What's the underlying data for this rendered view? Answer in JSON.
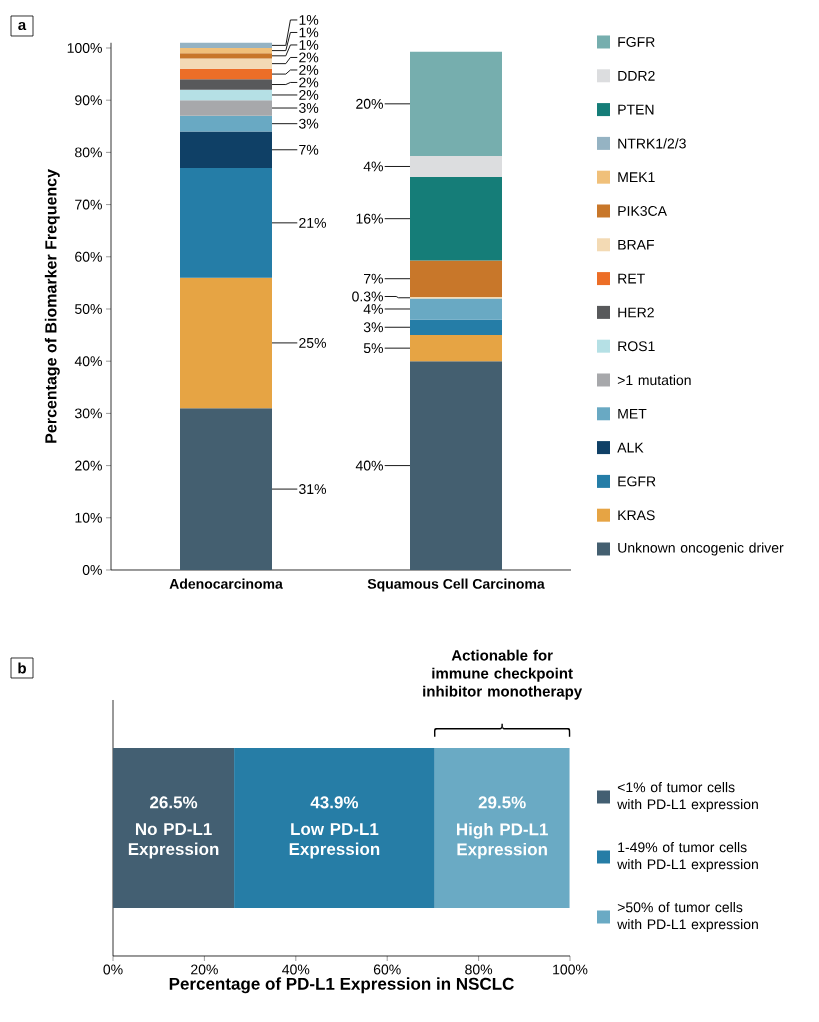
{
  "chart_data": [
    {
      "type": "bar",
      "stacked": true,
      "categories": [
        "Adenocarcinoma",
        "Squamous Cell Carcinoma"
      ],
      "ylabel": "Percentage of Biomarker Frequency",
      "ylim": [
        0,
        101
      ],
      "yticks": [
        {
          "value": 0,
          "label": "0%"
        },
        {
          "value": 10,
          "label": "10%"
        },
        {
          "value": 20,
          "label": "20%"
        },
        {
          "value": 30,
          "label": "30%"
        },
        {
          "value": 40,
          "label": "40%"
        },
        {
          "value": 50,
          "label": "50%"
        },
        {
          "value": 60,
          "label": "60%"
        },
        {
          "value": 70,
          "label": "70%"
        },
        {
          "value": 80,
          "label": "80%"
        },
        {
          "value": 90,
          "label": "90%"
        },
        {
          "value": 100,
          "label": "100%"
        }
      ],
      "legend": "right",
      "annotations": [
        "a"
      ],
      "series": [
        {
          "name": "Unknown oncogenic driver",
          "color": "#445f70",
          "values": [
            31,
            40
          ],
          "value_labels": [
            "31%",
            "40%"
          ]
        },
        {
          "name": "KRAS",
          "color": "#e6a444",
          "values": [
            25,
            5
          ],
          "value_labels": [
            "25%",
            "5%"
          ]
        },
        {
          "name": "EGFR",
          "color": "#257da7",
          "values": [
            21,
            3
          ],
          "value_labels": [
            "21%",
            "3%"
          ]
        },
        {
          "name": "ALK",
          "color": "#0f4066",
          "values": [
            7,
            null
          ],
          "value_labels": [
            "7%",
            null
          ]
        },
        {
          "name": "MET",
          "color": "#69a9c3",
          "values": [
            3,
            4
          ],
          "value_labels": [
            "3%",
            "4%"
          ]
        },
        {
          "name": ">1 mutation",
          "color": "#a7a8ab",
          "values": [
            3,
            null
          ],
          "value_labels": [
            "3%",
            null
          ]
        },
        {
          "name": "ROS1",
          "color": "#b5e0e5",
          "values": [
            2,
            null
          ],
          "value_labels": [
            "2%",
            null
          ]
        },
        {
          "name": "HER2",
          "color": "#58595b",
          "values": [
            2,
            null
          ],
          "value_labels": [
            "2%",
            null
          ]
        },
        {
          "name": "RET",
          "color": "#ec6e27",
          "values": [
            2,
            null
          ],
          "value_labels": [
            "2%",
            null
          ]
        },
        {
          "name": "BRAF",
          "color": "#f3dab4",
          "values": [
            2,
            0.3
          ],
          "value_labels": [
            "2%",
            "0.3%"
          ]
        },
        {
          "name": "PIK3CA",
          "color": "#c8772a",
          "values": [
            1,
            7
          ],
          "value_labels": [
            "1%",
            "7%"
          ]
        },
        {
          "name": "MEK1",
          "color": "#f0c07a",
          "values": [
            1,
            null
          ],
          "value_labels": [
            "1%",
            null
          ]
        },
        {
          "name": "NTRK1/2/3",
          "color": "#95b3c3",
          "values": [
            1,
            null
          ],
          "value_labels": [
            "1%",
            null
          ]
        },
        {
          "name": "PTEN",
          "color": "#157d78",
          "values": [
            null,
            16
          ],
          "value_labels": [
            null,
            "16%"
          ]
        },
        {
          "name": "DDR2",
          "color": "#dcdddf",
          "values": [
            null,
            4
          ],
          "value_labels": [
            null,
            "4%"
          ]
        },
        {
          "name": "FGFR",
          "color": "#76aeae",
          "values": [
            null,
            20
          ],
          "value_labels": [
            null,
            "20%"
          ]
        }
      ]
    },
    {
      "type": "bar",
      "stacked": true,
      "orientation": "horizontal",
      "categories": [
        null
      ],
      "xlabel": "Percentage of PD-L1 Expression in NSCLC",
      "xlim": [
        0,
        100
      ],
      "xticks": [
        {
          "value": 0,
          "label": "0%"
        },
        {
          "value": 20,
          "label": "20%"
        },
        {
          "value": 40,
          "label": "40%"
        },
        {
          "value": 60,
          "label": "60%"
        },
        {
          "value": 80,
          "label": "80%"
        },
        {
          "value": 100,
          "label": "100%"
        }
      ],
      "legend": "right",
      "annotations": [
        "b",
        "Actionable for immune checkpoint inhibitor monotherapy",
        "No PD-L1 Expression",
        "Low PD-L1 Expression",
        "High PD-L1 Expression"
      ],
      "series": [
        {
          "name": "<1% of tumor cells with PD-L1 expression",
          "color": "#435f72",
          "values": [
            26.5
          ],
          "value_labels": [
            "26.5%"
          ]
        },
        {
          "name": "1-49% of tumor cells with PD-L1 expression",
          "color": "#267da6",
          "values": [
            43.9
          ],
          "value_labels": [
            "43.9%"
          ]
        },
        {
          "name": ">50% of tumor cells with PD-L1 expression",
          "color": "#6aaac4",
          "values": [
            29.5
          ],
          "value_labels": [
            "29.5%"
          ]
        }
      ]
    }
  ]
}
